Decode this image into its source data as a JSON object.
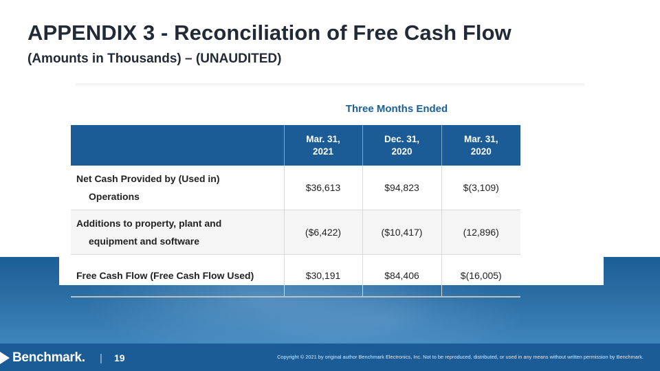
{
  "slide": {
    "title": "APPENDIX 3 - Reconciliation of Free Cash Flow",
    "subtitle": "(Amounts in Thousands) – (UNAUDITED)",
    "period_header": "Three Months Ended"
  },
  "table": {
    "columns": [
      {
        "line1": "Mar. 31,",
        "line2": "2021"
      },
      {
        "line1": "Dec. 31,",
        "line2": "2020"
      },
      {
        "line1": "Mar. 31,",
        "line2": "2020"
      }
    ],
    "rows": [
      {
        "label_line1": "Net Cash Provided by (Used in)",
        "label_line2": "Operations",
        "values": [
          "$36,613",
          "$94,823",
          "$(3,109)"
        ]
      },
      {
        "label_line1": "Additions to property, plant and",
        "label_line2": "equipment and software",
        "values": [
          "($6,422)",
          "($10,417)",
          "(12,896)"
        ]
      },
      {
        "label_line1": "Free Cash Flow (Free Cash Flow Used)",
        "values": [
          "$30,191",
          "$84,406",
          "$(16,005)"
        ]
      }
    ]
  },
  "footer": {
    "logo_text": "Benchmark",
    "logo_reg": ".",
    "separator": "|",
    "page_number": "19",
    "copyright": "Copyright © 2021 by original author Benchmark Electronics, Inc. Not to be reproduced, distributed, or used in any means without written permission by Benchmark."
  },
  "colors": {
    "brand_blue": "#1b5c96",
    "title_text": "#222a35",
    "accent_header": "#1b5f97"
  }
}
